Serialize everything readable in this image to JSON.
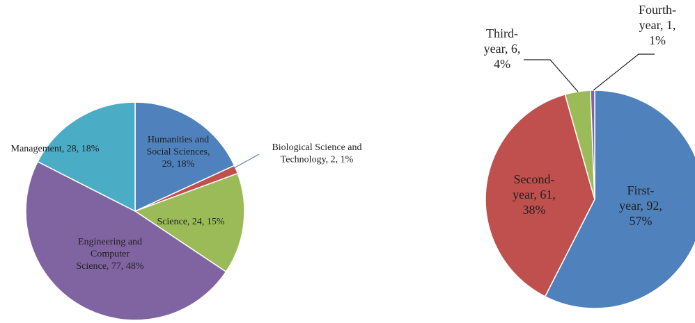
{
  "chart_data": [
    {
      "type": "pie",
      "title": "",
      "series": [
        {
          "values": [
            29,
            2,
            24,
            77,
            28
          ],
          "categories": [
            "Humanities and Social Sciences",
            "Biological Science and Technology",
            "Science",
            "Engineering and Computer Science",
            "Management"
          ]
        }
      ],
      "percentages": [
        18,
        1,
        15,
        48,
        18
      ],
      "colors": [
        "#4f81bd",
        "#c0504d",
        "#9bbb59",
        "#8064a2",
        "#4bacc6"
      ],
      "data_labels": [
        [
          "Humanities and",
          "Social Sciences,",
          "29, 18%"
        ],
        [
          "Biological Science and",
          "Technology, 2, 1%"
        ],
        [
          "Science, 24, 15%"
        ],
        [
          "Engineering and",
          "Computer",
          "Science, 77, 48%"
        ],
        [
          "Management, 28, 18%"
        ]
      ],
      "start_angle_deg": 0,
      "direction": "clockwise",
      "legend": "none"
    },
    {
      "type": "pie",
      "title": "",
      "series": [
        {
          "values": [
            92,
            61,
            6,
            1
          ],
          "categories": [
            "First-year",
            "Second-year",
            "Third-year",
            "Fourth-year"
          ]
        }
      ],
      "percentages": [
        57,
        38,
        4,
        1
      ],
      "colors": [
        "#4f81bd",
        "#c0504d",
        "#9bbb59",
        "#8064a2"
      ],
      "data_labels": [
        [
          "First-",
          "year, 92,",
          "57%"
        ],
        [
          "Second-",
          "year, 61,",
          "38%"
        ],
        [
          "Third-",
          "year, 6,",
          "4%"
        ],
        [
          "Fourth-",
          "year, 1,",
          "1%"
        ]
      ],
      "start_angle_deg": 0,
      "direction": "clockwise",
      "legend": "none"
    }
  ]
}
